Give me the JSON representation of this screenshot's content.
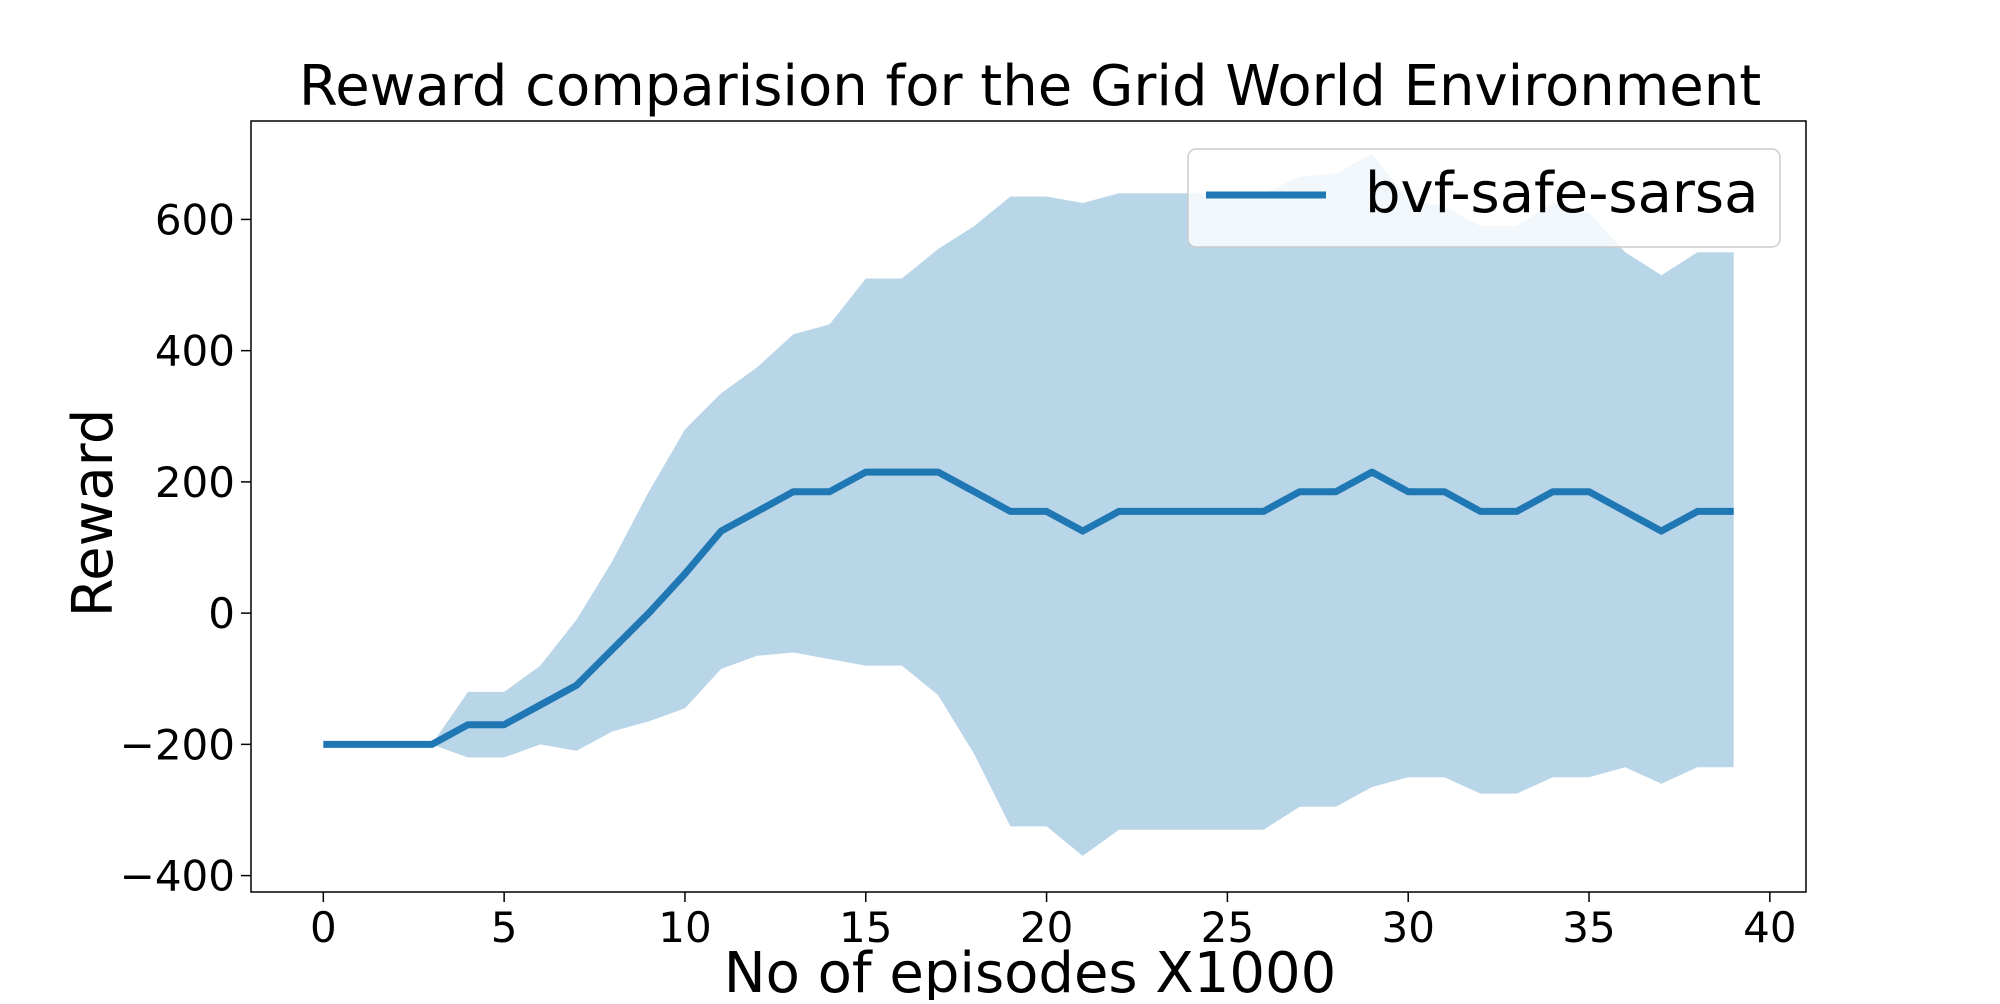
{
  "chart_data": {
    "type": "line",
    "title": "Reward comparision for the Grid World Environment",
    "xlabel": "No of episodes X1000",
    "ylabel": "Reward",
    "xlim": [
      -2,
      41
    ],
    "ylim": [
      -425,
      750
    ],
    "x_ticks": [
      0,
      5,
      10,
      15,
      20,
      25,
      30,
      35,
      40
    ],
    "y_ticks": [
      -400,
      -200,
      0,
      200,
      400,
      600
    ],
    "x_tick_labels": [
      "0",
      "5",
      "10",
      "15",
      "20",
      "25",
      "30",
      "35",
      "40"
    ],
    "y_tick_labels": [
      "−400",
      "−200",
      "0",
      "200",
      "400",
      "600"
    ],
    "grid": false,
    "legend_position": "top-right",
    "series": [
      {
        "name": "bvf-safe-sarsa",
        "color": "#1f77b4",
        "band_color": "#b9d5e8",
        "x": [
          0,
          1,
          2,
          3,
          4,
          5,
          6,
          7,
          8,
          9,
          10,
          11,
          12,
          13,
          14,
          15,
          16,
          17,
          18,
          19,
          20,
          21,
          22,
          23,
          24,
          25,
          26,
          27,
          28,
          29,
          30,
          31,
          32,
          33,
          34,
          35,
          36,
          37,
          38,
          39
        ],
        "y": [
          -200,
          -200,
          -200,
          -200,
          -170,
          -170,
          -140,
          -110,
          -55,
          0,
          60,
          125,
          155,
          185,
          185,
          215,
          215,
          215,
          185,
          155,
          155,
          125,
          155,
          155,
          155,
          155,
          155,
          185,
          185,
          215,
          185,
          185,
          155,
          155,
          185,
          185,
          155,
          125,
          155,
          155
        ],
        "upper": [
          -200,
          -200,
          -200,
          -200,
          -120,
          -120,
          -80,
          -10,
          80,
          185,
          280,
          335,
          375,
          425,
          440,
          510,
          510,
          555,
          590,
          635,
          635,
          625,
          640,
          640,
          640,
          640,
          640,
          665,
          670,
          700,
          630,
          620,
          590,
          590,
          625,
          610,
          550,
          515,
          550,
          550
        ],
        "lower": [
          -200,
          -200,
          -200,
          -200,
          -220,
          -220,
          -200,
          -210,
          -180,
          -165,
          -145,
          -85,
          -65,
          -60,
          -70,
          -80,
          -80,
          -125,
          -215,
          -325,
          -325,
          -370,
          -330,
          -330,
          -330,
          -330,
          -330,
          -295,
          -295,
          -265,
          -250,
          -250,
          -275,
          -275,
          -250,
          -250,
          -235,
          -260,
          -235,
          -235
        ]
      }
    ]
  }
}
